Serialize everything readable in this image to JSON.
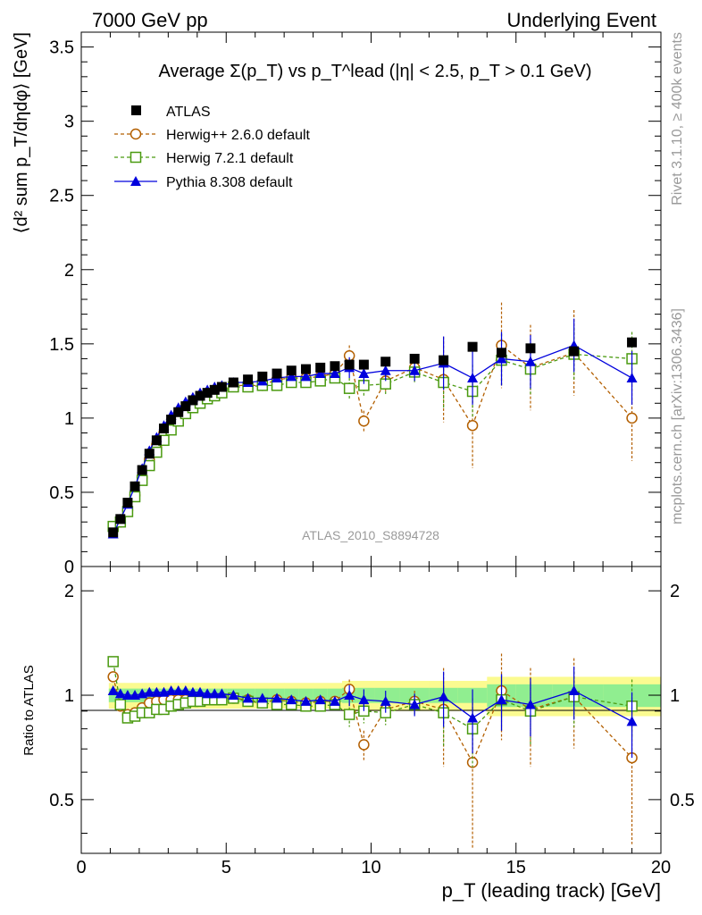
{
  "header": {
    "left": "7000 GeV pp",
    "right": "Underlying Event"
  },
  "side_labels": {
    "rivet": "Rivet 3.1.10, ≥ 400k events",
    "mcplots": "mcplots.cern.ch [arXiv:1306.3436]"
  },
  "watermark": "ATLAS_2010_S8894728",
  "chart_data": [
    {
      "type": "line",
      "title": "Average Σ(p_T) vs p_T^lead (|η| < 2.5, p_T > 0.1 GeV)",
      "xlabel": "p_T (leading track) [GeV]",
      "ylabel": "⟨d² sum p_T/dηdφ⟩ [GeV]",
      "xlim": [
        0,
        20
      ],
      "ylim": [
        0,
        3.6
      ],
      "yticks": [
        "0",
        "0.5",
        "1",
        "1.5",
        "2",
        "2.5",
        "3",
        "3.5"
      ],
      "xticks": [
        "0",
        "5",
        "10",
        "15",
        "20"
      ],
      "legend_position": "top-left",
      "x": [
        1.1,
        1.35,
        1.6,
        1.85,
        2.1,
        2.35,
        2.6,
        2.85,
        3.1,
        3.35,
        3.6,
        3.85,
        4.1,
        4.35,
        4.6,
        4.85,
        5.25,
        5.75,
        6.25,
        6.75,
        7.25,
        7.75,
        8.25,
        8.75,
        9.25,
        9.75,
        10.5,
        11.5,
        12.5,
        13.5,
        14.5,
        15.5,
        17.0,
        19.0
      ],
      "series": [
        {
          "name": "ATLAS",
          "color": "#000000",
          "marker": "square-filled",
          "values": [
            0.23,
            0.32,
            0.43,
            0.54,
            0.65,
            0.76,
            0.85,
            0.93,
            0.99,
            1.04,
            1.08,
            1.12,
            1.15,
            1.17,
            1.19,
            1.21,
            1.24,
            1.26,
            1.28,
            1.3,
            1.32,
            1.33,
            1.34,
            1.35,
            1.36,
            1.36,
            1.38,
            1.4,
            1.39,
            1.48,
            1.44,
            1.47,
            1.45,
            1.51
          ]
        },
        {
          "name": "Herwig++ 2.6.0 default",
          "color": "#b35f00",
          "marker": "circle-open",
          "values": [
            0.26,
            0.3,
            0.38,
            0.48,
            0.6,
            0.72,
            0.82,
            0.9,
            0.96,
            1.01,
            1.05,
            1.09,
            1.12,
            1.14,
            1.16,
            1.18,
            1.22,
            1.22,
            1.22,
            1.26,
            1.27,
            1.27,
            1.28,
            1.3,
            1.42,
            0.98,
            1.25,
            1.34,
            1.26,
            0.95,
            1.49,
            1.34,
            1.44,
            1.0
          ]
        },
        {
          "name": "Herwig 7.2.1 default",
          "color": "#4a9a10",
          "marker": "square-open",
          "values": [
            0.27,
            0.3,
            0.37,
            0.47,
            0.58,
            0.68,
            0.77,
            0.85,
            0.92,
            0.98,
            1.03,
            1.07,
            1.1,
            1.13,
            1.15,
            1.17,
            1.21,
            1.21,
            1.22,
            1.22,
            1.24,
            1.24,
            1.25,
            1.27,
            1.2,
            1.22,
            1.23,
            1.31,
            1.24,
            1.18,
            1.39,
            1.33,
            1.43,
            1.4
          ]
        },
        {
          "name": "Pythia 8.308 default",
          "color": "#0000dd",
          "marker": "triangle-filled",
          "values": [
            0.22,
            0.32,
            0.42,
            0.54,
            0.66,
            0.78,
            0.87,
            0.95,
            1.02,
            1.07,
            1.11,
            1.14,
            1.17,
            1.19,
            1.21,
            1.22,
            1.24,
            1.24,
            1.25,
            1.27,
            1.28,
            1.28,
            1.3,
            1.3,
            1.34,
            1.3,
            1.32,
            1.32,
            1.37,
            1.27,
            1.4,
            1.38,
            1.49,
            1.27
          ]
        }
      ]
    },
    {
      "type": "line",
      "ylabel": "Ratio to ATLAS",
      "ylim": [
        0.35,
        2.35
      ],
      "yticks": [
        "0.5",
        "1",
        "2"
      ],
      "x": [
        1.1,
        1.35,
        1.6,
        1.85,
        2.1,
        2.35,
        2.6,
        2.85,
        3.1,
        3.35,
        3.6,
        3.85,
        4.1,
        4.35,
        4.6,
        4.85,
        5.25,
        5.75,
        6.25,
        6.75,
        7.25,
        7.75,
        8.25,
        8.75,
        9.25,
        9.75,
        10.5,
        11.5,
        12.5,
        13.5,
        14.5,
        15.5,
        17.0,
        19.0
      ],
      "series": [
        {
          "name": "Herwig++ 2.6.0 default",
          "color": "#b35f00",
          "values": [
            1.13,
            0.93,
            0.88,
            0.89,
            0.92,
            0.95,
            0.96,
            0.97,
            0.97,
            0.97,
            0.97,
            0.97,
            0.97,
            0.97,
            0.97,
            0.98,
            0.98,
            0.97,
            0.95,
            0.97,
            0.96,
            0.95,
            0.96,
            0.96,
            1.04,
            0.72,
            0.91,
            0.96,
            0.91,
            0.64,
            1.03,
            0.91,
            0.99,
            0.66
          ]
        },
        {
          "name": "Herwig 7.2.1 default",
          "color": "#4a9a10",
          "values": [
            1.25,
            0.94,
            0.86,
            0.87,
            0.89,
            0.89,
            0.91,
            0.91,
            0.93,
            0.94,
            0.95,
            0.96,
            0.96,
            0.97,
            0.97,
            0.97,
            0.98,
            0.96,
            0.95,
            0.94,
            0.94,
            0.93,
            0.93,
            0.94,
            0.88,
            0.9,
            0.89,
            0.94,
            0.89,
            0.8,
            0.97,
            0.9,
            0.99,
            0.93
          ]
        },
        {
          "name": "Pythia 8.308 default",
          "color": "#0000dd",
          "values": [
            1.03,
            1.01,
            1.0,
            1.0,
            1.01,
            1.02,
            1.02,
            1.02,
            1.03,
            1.03,
            1.03,
            1.02,
            1.02,
            1.01,
            1.01,
            1.01,
            1.0,
            0.98,
            0.98,
            0.98,
            0.97,
            0.96,
            0.97,
            0.96,
            1.0,
            0.97,
            0.96,
            0.94,
            0.99,
            0.86,
            0.97,
            0.94,
            1.03,
            0.84
          ]
        }
      ]
    }
  ]
}
